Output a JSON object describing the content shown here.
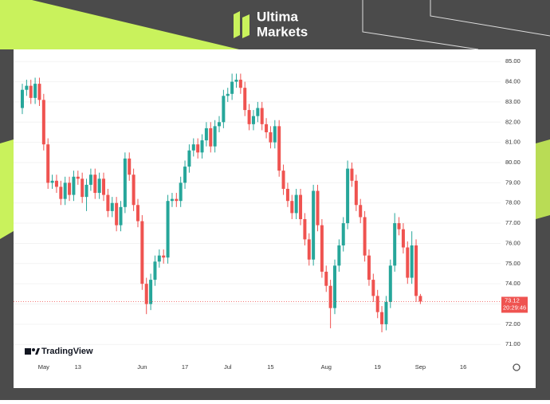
{
  "brand": {
    "line1": "Ultima",
    "line2": "Markets"
  },
  "chart_data": {
    "type": "candlestick",
    "watermark": "TradingView",
    "categories": [
      null,
      null,
      null,
      null,
      null,
      "May",
      null,
      null,
      null,
      null,
      null,
      null,
      null,
      "13",
      null,
      null,
      null,
      null,
      null,
      null,
      null,
      null,
      null,
      null,
      null,
      null,
      null,
      null,
      "Jun",
      null,
      null,
      null,
      null,
      null,
      null,
      null,
      null,
      null,
      "17",
      null,
      null,
      null,
      null,
      null,
      null,
      null,
      null,
      null,
      "Jul",
      null,
      null,
      null,
      null,
      null,
      null,
      null,
      null,
      null,
      "15",
      null,
      null,
      null,
      null,
      null,
      null,
      null,
      null,
      null,
      null,
      null,
      null,
      "Aug",
      null,
      null,
      null,
      null,
      null,
      null,
      null,
      null,
      null,
      null,
      null,
      "19",
      null,
      null,
      null,
      null,
      null,
      null,
      null,
      null,
      null,
      "Sep",
      null,
      null,
      null,
      null,
      null,
      null,
      null,
      null,
      null,
      "16"
    ],
    "open": [
      82.7,
      83.6,
      83.8,
      83.2,
      83.9,
      83.1,
      80.9,
      79.0,
      79.1,
      78.8,
      78.2,
      79.0,
      78.4,
      79.3,
      79.2,
      78.3,
      78.9,
      79.4,
      78.5,
      79.2,
      78.4,
      77.6,
      78.0,
      76.9,
      77.8,
      80.2,
      79.4,
      77.9,
      77.1,
      74.0,
      73.0,
      74.2,
      75.1,
      75.4,
      75.3,
      78.1,
      78.2,
      78.1,
      79.0,
      79.8,
      80.6,
      80.9,
      80.5,
      81.1,
      81.7,
      80.8,
      81.8,
      82.0,
      83.3,
      83.4,
      84.0,
      84.1,
      83.7,
      82.6,
      81.9,
      82.3,
      82.7,
      81.9,
      81.5,
      81.0,
      81.8,
      79.6,
      78.7,
      78.1,
      77.5,
      78.4,
      77.2,
      76.2,
      75.2,
      78.6,
      76.9,
      74.6,
      73.9,
      72.8,
      74.9,
      75.9,
      77.0,
      79.7,
      79.1,
      77.9,
      77.3,
      75.4,
      74.2,
      73.4,
      72.6,
      72.0,
      73.1,
      74.9,
      77.0,
      76.7,
      75.8,
      74.3,
      75.9,
      73.4,
      null,
      null,
      null,
      null,
      null,
      null,
      null,
      null,
      null,
      null
    ],
    "high": [
      83.9,
      84.1,
      84.1,
      84.2,
      84.2,
      83.4,
      81.2,
      79.4,
      79.4,
      79.1,
      79.3,
      79.3,
      79.6,
      79.6,
      79.5,
      79.2,
      79.7,
      79.7,
      79.5,
      79.5,
      78.7,
      78.3,
      78.3,
      78.1,
      80.5,
      80.5,
      79.7,
      78.2,
      77.4,
      74.3,
      74.5,
      75.4,
      75.7,
      75.7,
      78.4,
      78.5,
      78.5,
      79.3,
      80.1,
      80.9,
      81.2,
      81.2,
      81.4,
      82.0,
      82.0,
      82.1,
      82.3,
      83.6,
      83.7,
      84.4,
      84.4,
      84.4,
      84.0,
      82.9,
      82.6,
      83.0,
      83.0,
      82.2,
      81.8,
      82.1,
      82.1,
      79.9,
      79.0,
      78.4,
      78.7,
      78.7,
      77.5,
      76.5,
      78.9,
      78.9,
      77.2,
      74.9,
      74.2,
      75.2,
      76.2,
      77.3,
      80.1,
      80.0,
      79.4,
      78.2,
      77.6,
      75.7,
      74.5,
      73.7,
      72.9,
      73.4,
      75.2,
      77.5,
      77.3,
      77.0,
      76.1,
      76.6,
      76.2,
      73.5,
      null,
      null,
      null,
      null,
      null,
      null,
      null,
      null,
      null,
      null
    ],
    "low": [
      82.4,
      83.3,
      82.9,
      82.9,
      82.8,
      80.6,
      78.7,
      78.7,
      78.5,
      77.9,
      77.9,
      78.1,
      78.1,
      78.9,
      78.0,
      77.6,
      78.6,
      78.2,
      78.2,
      78.1,
      77.3,
      77.3,
      76.6,
      76.6,
      77.5,
      79.1,
      77.6,
      76.8,
      73.7,
      72.5,
      72.7,
      73.9,
      74.8,
      75.0,
      75.0,
      77.8,
      77.8,
      77.8,
      78.7,
      79.5,
      80.3,
      80.2,
      80.2,
      80.8,
      80.5,
      80.5,
      81.5,
      81.7,
      83.0,
      83.1,
      83.7,
      83.4,
      82.3,
      81.6,
      81.6,
      82.0,
      81.6,
      81.2,
      80.7,
      80.7,
      79.3,
      78.4,
      77.8,
      77.2,
      77.2,
      76.9,
      75.9,
      74.9,
      74.9,
      76.6,
      74.3,
      73.6,
      71.8,
      72.5,
      74.6,
      75.6,
      76.7,
      78.8,
      77.6,
      77.0,
      75.1,
      73.9,
      73.1,
      72.3,
      71.6,
      71.7,
      72.8,
      74.6,
      76.4,
      75.5,
      74.0,
      74.0,
      73.1,
      73.0,
      null,
      null,
      null,
      null,
      null,
      null,
      null,
      null,
      null,
      null
    ],
    "close": [
      83.6,
      83.8,
      83.2,
      83.9,
      83.1,
      80.9,
      79.0,
      79.1,
      78.8,
      78.2,
      79.0,
      78.4,
      79.3,
      79.2,
      78.3,
      78.9,
      79.4,
      78.5,
      79.2,
      78.4,
      77.6,
      78.0,
      76.9,
      77.8,
      80.2,
      79.4,
      77.9,
      77.1,
      74.0,
      73.0,
      74.2,
      75.1,
      75.4,
      75.3,
      78.1,
      78.2,
      78.1,
      79.0,
      79.8,
      80.6,
      80.9,
      80.5,
      81.1,
      81.7,
      80.8,
      81.8,
      82.0,
      83.3,
      83.4,
      84.0,
      84.1,
      83.7,
      82.6,
      81.9,
      82.3,
      82.7,
      81.9,
      81.5,
      81.0,
      81.8,
      79.6,
      78.7,
      78.1,
      77.5,
      78.4,
      77.2,
      76.2,
      75.2,
      78.6,
      76.9,
      74.6,
      73.9,
      72.8,
      74.9,
      75.9,
      77.0,
      79.7,
      79.1,
      77.9,
      77.3,
      75.4,
      74.2,
      73.4,
      72.6,
      72.0,
      73.1,
      74.9,
      77.0,
      76.7,
      75.8,
      74.3,
      75.9,
      73.4,
      73.12,
      null,
      null,
      null,
      null,
      null,
      null,
      null,
      null,
      null,
      null
    ],
    "up_color": "#26a69a",
    "down_color": "#ef5350",
    "last_price": 73.12,
    "countdown": "20:29:46",
    "ylim": [
      70.3,
      85.6
    ],
    "yticks": [
      {
        "value": 71,
        "label": "71.00"
      },
      {
        "value": 72,
        "label": "72.00"
      },
      {
        "value": 73,
        "label": "73.00"
      },
      {
        "value": 74,
        "label": "74.00"
      },
      {
        "value": 75,
        "label": "75.00"
      },
      {
        "value": 76,
        "label": "76.00"
      },
      {
        "value": 77,
        "label": "77.00"
      },
      {
        "value": 78,
        "label": "78.00"
      },
      {
        "value": 79,
        "label": "79.00"
      },
      {
        "value": 80,
        "label": "80.00"
      },
      {
        "value": 81,
        "label": "81.00"
      },
      {
        "value": 82,
        "label": "82.00"
      },
      {
        "value": 83,
        "label": "83.00"
      },
      {
        "value": 84,
        "label": "84.00"
      },
      {
        "value": 85,
        "label": "85.00"
      }
    ]
  }
}
